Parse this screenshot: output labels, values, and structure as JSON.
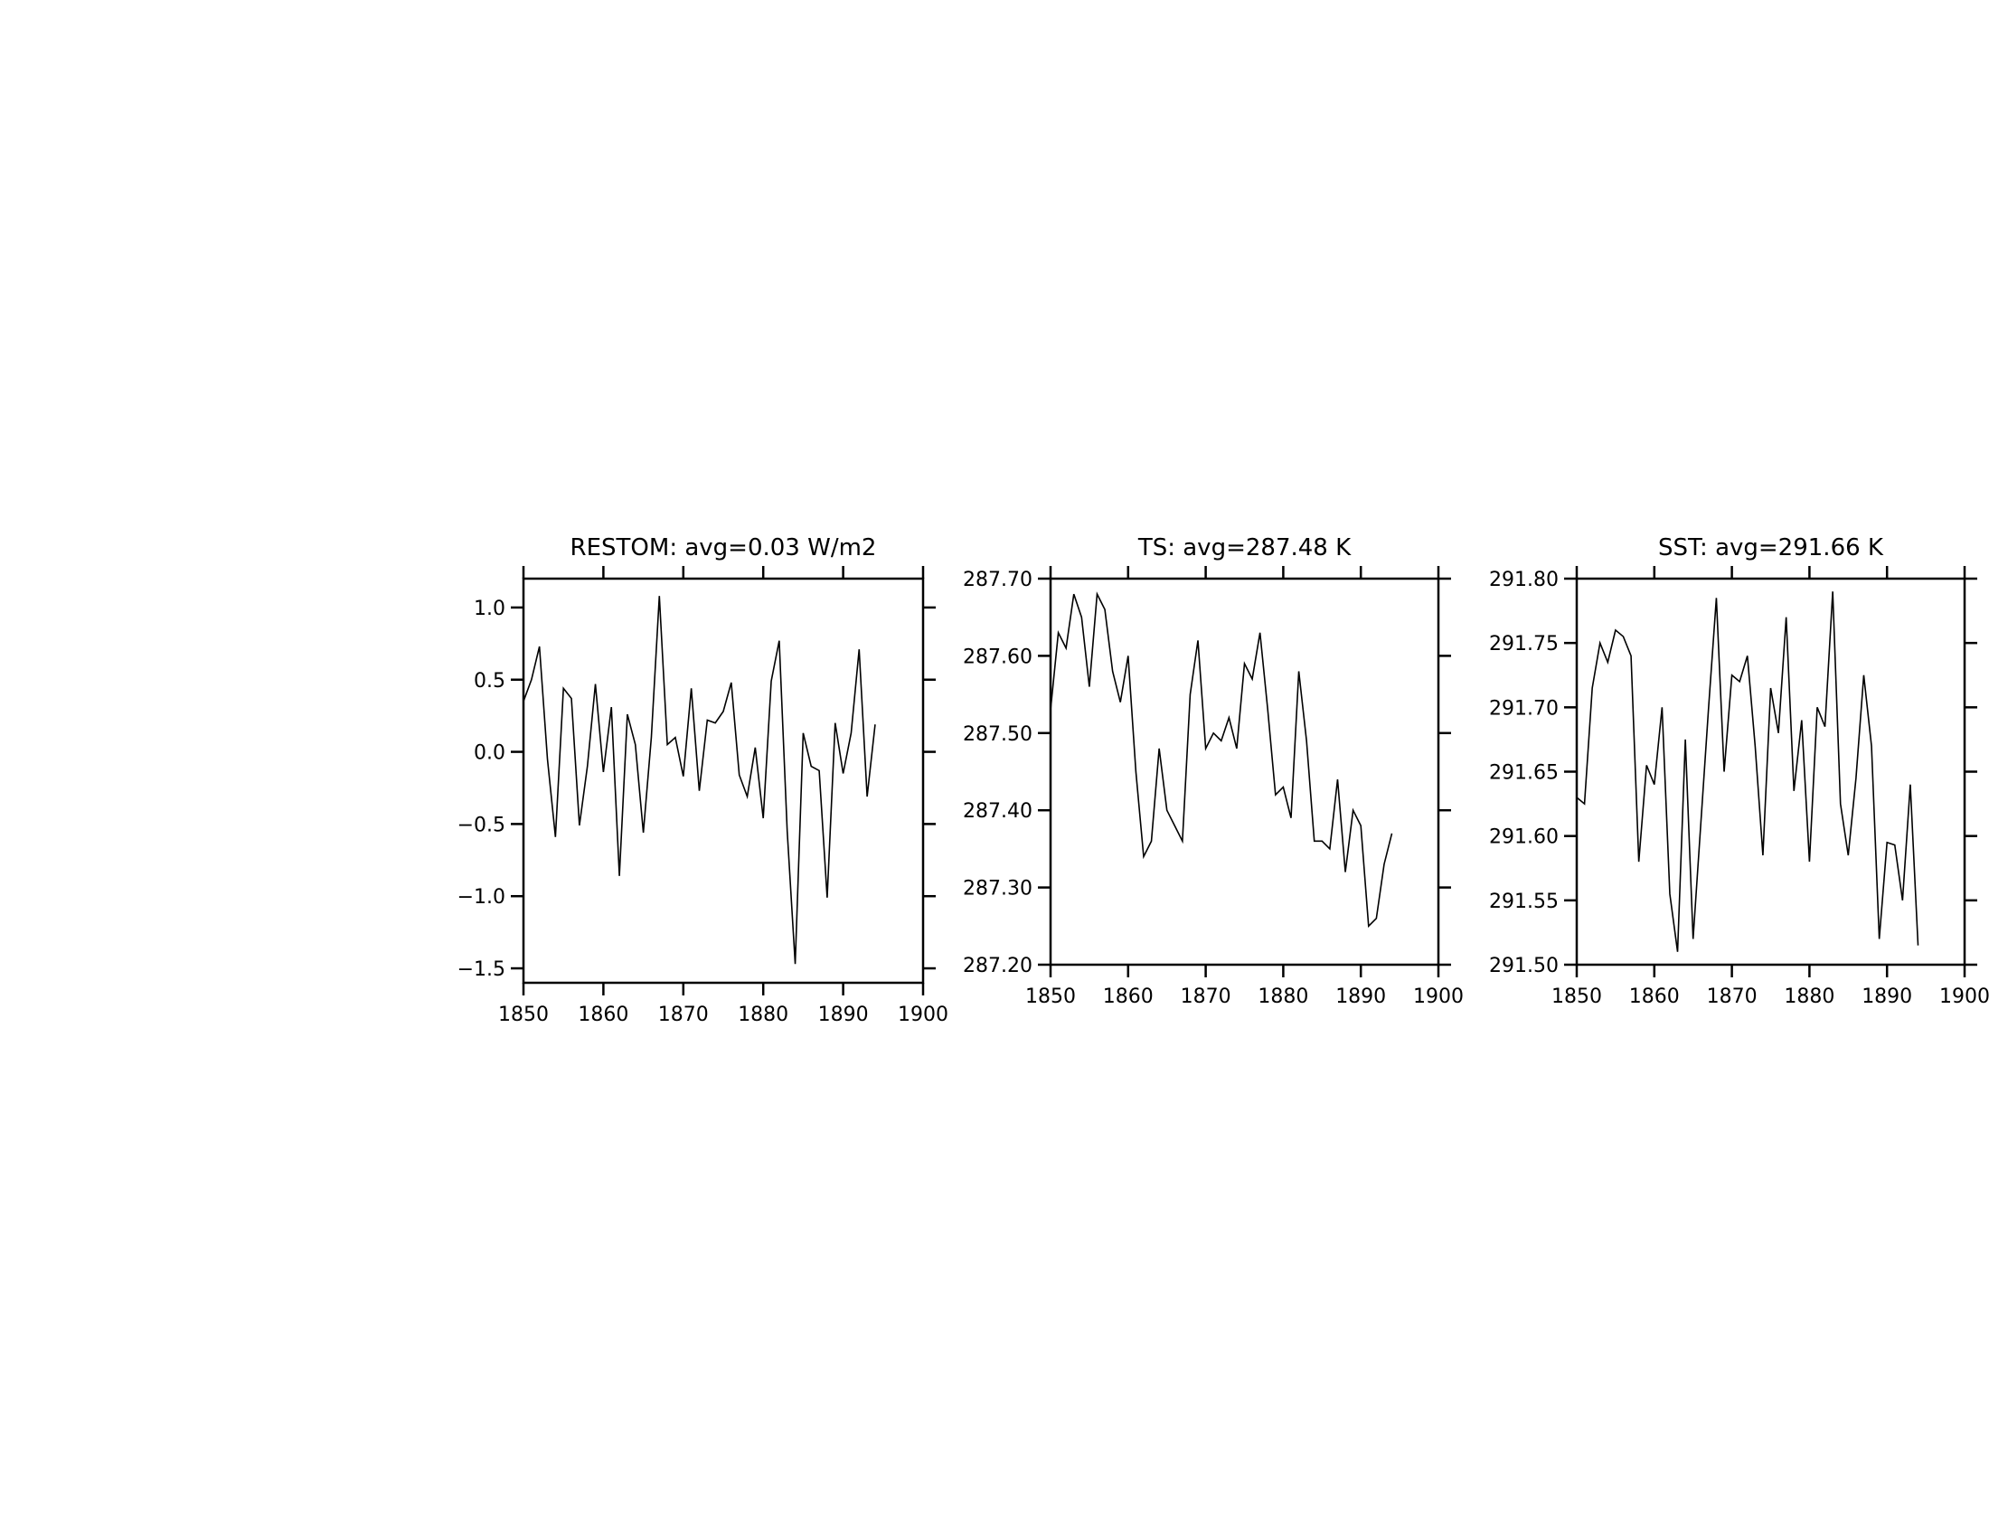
{
  "chart_data": [
    {
      "type": "line",
      "title": "RESTOM: avg=0.03 W/m2",
      "color": "#000000",
      "x": [
        1850,
        1851,
        1852,
        1853,
        1854,
        1855,
        1856,
        1857,
        1858,
        1859,
        1860,
        1861,
        1862,
        1863,
        1864,
        1865,
        1866,
        1867,
        1868,
        1869,
        1870,
        1871,
        1872,
        1873,
        1874,
        1875,
        1876,
        1877,
        1878,
        1879,
        1880,
        1881,
        1882,
        1883,
        1884,
        1885,
        1886,
        1887,
        1888,
        1889,
        1890,
        1891,
        1892,
        1893,
        1894
      ],
      "values": [
        0.35,
        0.5,
        0.73,
        -0.05,
        -0.59,
        0.44,
        0.37,
        -0.51,
        -0.1,
        0.47,
        -0.14,
        0.31,
        -0.86,
        0.26,
        0.05,
        -0.56,
        0.1,
        1.08,
        0.05,
        0.1,
        -0.17,
        0.44,
        -0.27,
        0.22,
        0.2,
        0.28,
        0.48,
        -0.16,
        -0.31,
        0.03,
        -0.46,
        0.49,
        0.77,
        -0.55,
        -1.47,
        0.13,
        -0.1,
        -0.13,
        -1.01,
        0.2,
        -0.15,
        0.13,
        0.71,
        -0.31,
        0.19
      ],
      "xlim": [
        1850,
        1900
      ],
      "xticks": [
        1850,
        1860,
        1870,
        1880,
        1890,
        1900
      ],
      "ylim": [
        -1.6,
        1.2
      ],
      "yticks": [
        {
          "value": -1.5,
          "label": "−1.5"
        },
        {
          "value": -1,
          "label": "−1.0"
        },
        {
          "value": -0.5,
          "label": "−0.5"
        },
        {
          "value": 0,
          "label": "0.0"
        },
        0.5,
        {
          "value": 1,
          "label": "1.0"
        }
      ]
    },
    {
      "type": "line",
      "title": "TS: avg=287.48 K",
      "color": "#000000",
      "x": [
        1850,
        1851,
        1852,
        1853,
        1854,
        1855,
        1856,
        1857,
        1858,
        1859,
        1860,
        1861,
        1862,
        1863,
        1864,
        1865,
        1866,
        1867,
        1868,
        1869,
        1870,
        1871,
        1872,
        1873,
        1874,
        1875,
        1876,
        1877,
        1878,
        1879,
        1880,
        1881,
        1882,
        1883,
        1884,
        1885,
        1886,
        1887,
        1888,
        1889,
        1890,
        1891,
        1892,
        1893,
        1894
      ],
      "values": [
        287.53,
        287.63,
        287.61,
        287.68,
        287.65,
        287.56,
        287.68,
        287.66,
        287.58,
        287.54,
        287.6,
        287.45,
        287.34,
        287.36,
        287.48,
        287.4,
        287.38,
        287.36,
        287.55,
        287.62,
        287.48,
        287.5,
        287.49,
        287.52,
        287.48,
        287.59,
        287.57,
        287.63,
        287.53,
        287.42,
        287.43,
        287.39,
        287.58,
        287.49,
        287.36,
        287.36,
        287.35,
        287.44,
        287.32,
        287.4,
        287.38,
        287.25,
        287.26,
        287.33,
        287.37
      ],
      "xlim": [
        1850,
        1900
      ],
      "xticks": [
        1850,
        1860,
        1870,
        1880,
        1890,
        1900
      ],
      "ylim": [
        287.2,
        287.7
      ],
      "yticks": [
        {
          "value": 287.2,
          "label": "287.20"
        },
        {
          "value": 287.3,
          "label": "287.30"
        },
        {
          "value": 287.4,
          "label": "287.40"
        },
        {
          "value": 287.5,
          "label": "287.50"
        },
        {
          "value": 287.6,
          "label": "287.60"
        },
        {
          "value": 287.7,
          "label": "287.70"
        }
      ]
    },
    {
      "type": "line",
      "title": "SST: avg=291.66 K",
      "color": "#000000",
      "x": [
        1850,
        1851,
        1852,
        1853,
        1854,
        1855,
        1856,
        1857,
        1858,
        1859,
        1860,
        1861,
        1862,
        1863,
        1864,
        1865,
        1866,
        1867,
        1868,
        1869,
        1870,
        1871,
        1872,
        1873,
        1874,
        1875,
        1876,
        1877,
        1878,
        1879,
        1880,
        1881,
        1882,
        1883,
        1884,
        1885,
        1886,
        1887,
        1888,
        1889,
        1890,
        1891,
        1892,
        1893,
        1894
      ],
      "values": [
        291.63,
        291.625,
        291.715,
        291.75,
        291.735,
        291.76,
        291.755,
        291.74,
        291.58,
        291.655,
        291.64,
        291.7,
        291.555,
        291.51,
        291.675,
        291.52,
        291.61,
        291.7,
        291.785,
        291.65,
        291.725,
        291.72,
        291.74,
        291.67,
        291.585,
        291.715,
        291.68,
        291.77,
        291.635,
        291.69,
        291.58,
        291.7,
        291.685,
        291.79,
        291.625,
        291.585,
        291.645,
        291.725,
        291.67,
        291.52,
        291.595,
        291.593,
        291.55,
        291.64,
        291.515
      ],
      "xlim": [
        1850,
        1900
      ],
      "xticks": [
        1850,
        1860,
        1870,
        1880,
        1890,
        1900
      ],
      "ylim": [
        291.5,
        291.8
      ],
      "yticks": [
        {
          "value": 291.5,
          "label": "291.50"
        },
        291.55,
        {
          "value": 291.6,
          "label": "291.60"
        },
        291.65,
        {
          "value": 291.7,
          "label": "291.70"
        },
        291.75,
        {
          "value": 291.8,
          "label": "291.80"
        }
      ]
    }
  ]
}
